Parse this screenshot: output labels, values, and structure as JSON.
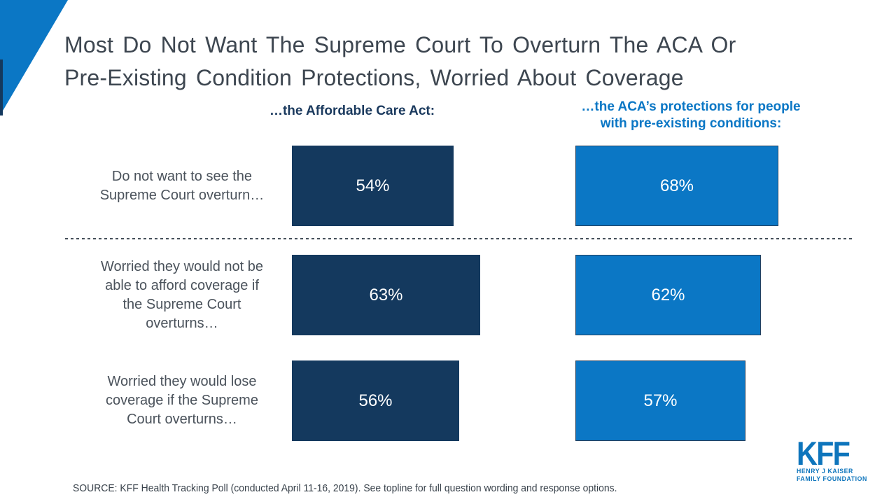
{
  "slide": {
    "title": "Most Do Not Want The Supreme Court To Overturn The ACA Or\nPre-Existing Condition Protections, Worried About Coverage"
  },
  "headers": {
    "left": "…the Affordable Care Act:",
    "right": "…the ACA’s protections for people\nwith pre-existing conditions:"
  },
  "chart_data": {
    "type": "bar",
    "orientation": "horizontal",
    "title": "Most Do Not Want The Supreme Court To Overturn The ACA Or Pre-Existing Condition Protections, Worried About Coverage",
    "categories": [
      "Do not want to see the\nSupreme Court overturn…",
      "Worried they would not be\nable to afford coverage if\nthe Supreme Court\noverturns…",
      "Worried they would lose\ncoverage if the Supreme\nCourt overturns…"
    ],
    "series": [
      {
        "name": "…the Affordable Care Act:",
        "color": "#14395e",
        "values": [
          54,
          63,
          56
        ]
      },
      {
        "name": "…the ACA’s protections for people with pre-existing conditions:",
        "color": "#0b77c5",
        "values": [
          68,
          62,
          57
        ]
      }
    ],
    "value_suffix": "%",
    "xlim": [
      0,
      100
    ],
    "grid": false,
    "legend_position": "column-headers"
  },
  "footer": {
    "source": "SOURCE: KFF Health Tracking Poll (conducted April 11-16, 2019). See topline for full question wording and response options."
  },
  "logo": {
    "name": "KFF",
    "line1": "HENRY J KAISER",
    "line2": "FAMILY FOUNDATION"
  },
  "colors": {
    "dark_navy": "#14395e",
    "bright_blue": "#0b77c5",
    "title_text": "#3d4650",
    "label_text": "#4a525b",
    "bar_value_text": "#ffffff"
  }
}
